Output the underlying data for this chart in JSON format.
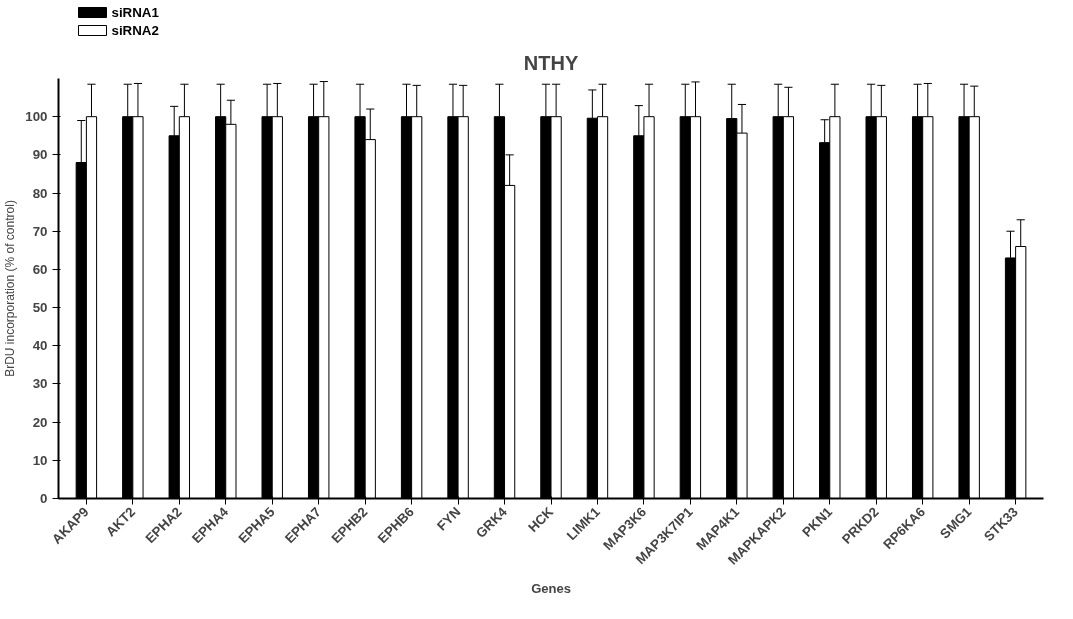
{
  "chart_data": {
    "type": "bar",
    "title": "NTHY",
    "xlabel": "Genes",
    "ylabel": "BrDU incorporation (% of control)",
    "categories": [
      "AKAP9",
      "AKT2",
      "EPHA2",
      "EPHA4",
      "EPHA5",
      "EPHA7",
      "EPHB2",
      "EPHB6",
      "FYN",
      "GRK4",
      "HCK",
      "LIMK1",
      "MAP3K6",
      "MAP3K7IP1",
      "MAP4K1",
      "MAPKAPK2",
      "PKN1",
      "PRKD2",
      "RP6KA6",
      "SMG1",
      "STK33"
    ],
    "series": [
      {
        "name": "siRNA1",
        "color": "#000000",
        "values": [
          88,
          100,
          95,
          100,
          100,
          100,
          100,
          100,
          100,
          100,
          100,
          99.6,
          95,
          100,
          99.5,
          100,
          93.2,
          100,
          100,
          100,
          63
        ],
        "errors": [
          [
            88,
            99
          ],
          [
            100,
            108.5
          ],
          [
            95,
            102.7
          ],
          [
            100,
            108.5
          ],
          [
            100,
            108.5
          ],
          [
            100,
            108.5
          ],
          [
            100,
            108.5
          ],
          [
            100,
            108.5
          ],
          [
            100,
            108.5
          ],
          [
            100,
            108.5
          ],
          [
            100,
            108.5
          ],
          [
            99.6,
            107
          ],
          [
            95,
            102.9
          ],
          [
            100,
            108.5
          ],
          [
            99.5,
            108.5
          ],
          [
            100,
            108.5
          ],
          [
            93.2,
            99.2
          ],
          [
            100,
            108.5
          ],
          [
            100,
            108.5
          ],
          [
            100,
            108.5
          ],
          [
            63,
            70
          ]
        ]
      },
      {
        "name": "siRNA2",
        "color": "#ffffff",
        "values": [
          100,
          100,
          100,
          98,
          100,
          100,
          94,
          100,
          100,
          82,
          100,
          100,
          100,
          100,
          95.7,
          100,
          100,
          100,
          100,
          100,
          66
        ],
        "errors": [
          [
            100,
            108.5
          ],
          [
            100,
            108.7
          ],
          [
            100,
            108.5
          ],
          [
            98,
            104.3
          ],
          [
            100,
            108.7
          ],
          [
            100,
            109.2
          ],
          [
            94,
            102
          ],
          [
            100,
            108.2
          ],
          [
            100,
            108.2
          ],
          [
            82,
            90
          ],
          [
            100,
            108.5
          ],
          [
            100,
            108.5
          ],
          [
            100,
            108.5
          ],
          [
            100,
            109.1
          ],
          [
            95.7,
            103.2
          ],
          [
            100,
            107.7
          ],
          [
            100,
            108.5
          ],
          [
            100,
            108.2
          ],
          [
            100,
            108.7
          ],
          [
            100,
            108
          ],
          [
            66,
            73
          ]
        ]
      }
    ],
    "ylim": [
      0,
      110
    ],
    "yticks": [
      0,
      10,
      20,
      30,
      40,
      50,
      60,
      70,
      80,
      90,
      100
    ],
    "grid": false,
    "legend": "top left"
  }
}
